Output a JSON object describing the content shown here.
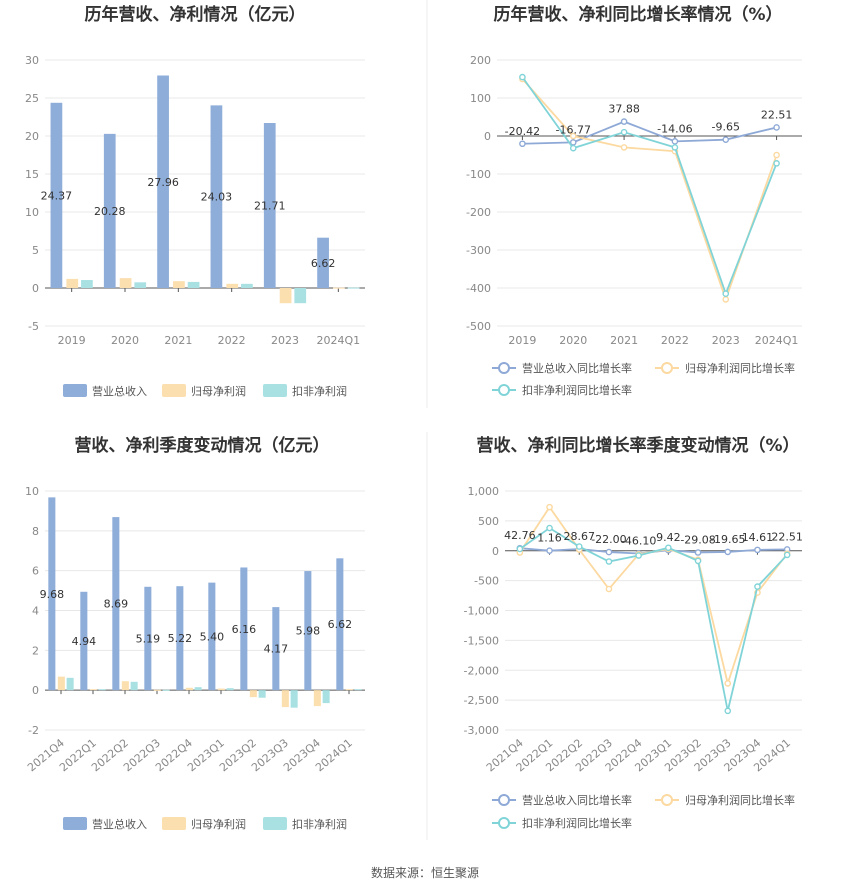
{
  "source_text": "数据来源：恒生聚源",
  "colors": {
    "revenue": "#8eadd9",
    "net_profit": "#fcdfae",
    "deducted": "#a9e1e3",
    "rev_line": "#8ea9d6",
    "np_line": "#fcd9a0",
    "ded_line": "#80d4d8"
  },
  "chart_data": [
    {
      "type": "bar",
      "title": "历年营收、净利情况（亿元）",
      "categories": [
        "2019",
        "2020",
        "2021",
        "2022",
        "2023",
        "2024Q1"
      ],
      "ylim": [
        -5,
        30
      ],
      "yticks": [
        -5,
        0,
        5,
        10,
        15,
        20,
        25,
        30
      ],
      "series": [
        {
          "name": "营业总收入",
          "values": [
            24.37,
            20.28,
            27.96,
            24.03,
            21.71,
            6.62
          ]
        },
        {
          "name": "归母净利润",
          "values": [
            1.2,
            1.3,
            0.9,
            0.55,
            -2.0,
            0.05
          ]
        },
        {
          "name": "扣非净利润",
          "values": [
            1.05,
            0.75,
            0.8,
            0.55,
            -2.0,
            0.05
          ]
        }
      ],
      "data_labels": [
        "24.37",
        "20.28",
        "27.96",
        "24.03",
        "21.71",
        "6.62"
      ],
      "legend": "bottom"
    },
    {
      "type": "line",
      "title": "历年营收、净利同比增长率情况（%）",
      "categories": [
        "2019",
        "2020",
        "2021",
        "2022",
        "2023",
        "2024Q1"
      ],
      "ylim": [
        -500,
        200
      ],
      "yticks": [
        -500,
        -400,
        -300,
        -200,
        -100,
        0,
        100,
        200
      ],
      "series": [
        {
          "name": "营业总收入同比增长率",
          "values": [
            -20.42,
            -16.77,
            37.88,
            -14.06,
            -9.65,
            22.51
          ]
        },
        {
          "name": "归母净利润同比增长率",
          "values": [
            150,
            0,
            -30,
            -40,
            -430,
            -50
          ]
        },
        {
          "name": "扣非净利润同比增长率",
          "values": [
            155,
            -32,
            10,
            -30,
            -415,
            -72
          ]
        }
      ],
      "data_labels": [
        "-20.42",
        "-16.77",
        "37.88",
        "-14.06",
        "-9.65",
        "22.51"
      ],
      "legend": "bottom"
    },
    {
      "type": "bar",
      "title": "营收、净利季度变动情况（亿元）",
      "categories": [
        "2021Q4",
        "2022Q1",
        "2022Q2",
        "2022Q3",
        "2022Q4",
        "2023Q1",
        "2023Q2",
        "2023Q3",
        "2023Q4",
        "2024Q1"
      ],
      "ylim": [
        -2,
        10
      ],
      "yticks": [
        -2,
        0,
        2,
        4,
        6,
        8,
        10
      ],
      "series": [
        {
          "name": "营业总收入",
          "values": [
            9.68,
            4.94,
            8.69,
            5.19,
            5.22,
            5.4,
            6.16,
            4.17,
            5.98,
            6.62
          ]
        },
        {
          "name": "归母净利润",
          "values": [
            0.68,
            0.05,
            0.45,
            0.02,
            0.12,
            0.08,
            -0.35,
            -0.85,
            -0.8,
            0.05
          ]
        },
        {
          "name": "扣非净利润",
          "values": [
            0.62,
            0.05,
            0.42,
            0.02,
            0.15,
            0.1,
            -0.38,
            -0.88,
            -0.65,
            0.05
          ]
        }
      ],
      "data_labels": [
        "9.68",
        "4.94",
        "8.69",
        "5.19",
        "5.22",
        "5.40",
        "6.16",
        "4.17",
        "5.98",
        "6.62"
      ],
      "legend": "bottom"
    },
    {
      "type": "line",
      "title": "营收、净利同比增长率季度变动情况（%）",
      "categories": [
        "2021Q4",
        "2022Q1",
        "2022Q2",
        "2022Q3",
        "2022Q4",
        "2023Q1",
        "2023Q2",
        "2023Q3",
        "2023Q4",
        "2024Q1"
      ],
      "ylim": [
        -3000,
        1000
      ],
      "yticks": [
        -3000,
        -2500,
        -2000,
        -1500,
        -1000,
        -500,
        0,
        500,
        1000
      ],
      "ytick_labels": [
        "-3,000",
        "-2,500",
        "-2,000",
        "-1,500",
        "-1,000",
        "-500",
        "0",
        "500",
        "1,000"
      ],
      "series": [
        {
          "name": "营业总收入同比增长率",
          "values": [
            42.76,
            1.16,
            28.67,
            -22.0,
            -46.1,
            9.42,
            -29.08,
            -19.65,
            14.61,
            22.51
          ]
        },
        {
          "name": "归母净利润同比增长率",
          "values": [
            -30,
            730,
            20,
            -640,
            -60,
            30,
            -150,
            -2220,
            -700,
            -50
          ]
        },
        {
          "name": "扣非净利润同比增长率",
          "values": [
            30,
            380,
            70,
            -180,
            -80,
            50,
            -170,
            -2680,
            -600,
            -70
          ]
        }
      ],
      "data_labels": [
        "42.76",
        "1.16",
        "28.67",
        "-22.00",
        "-46.10",
        "9.42",
        "-29.08",
        "-19.65",
        "14.61",
        "22.51"
      ],
      "legend": "bottom"
    }
  ]
}
